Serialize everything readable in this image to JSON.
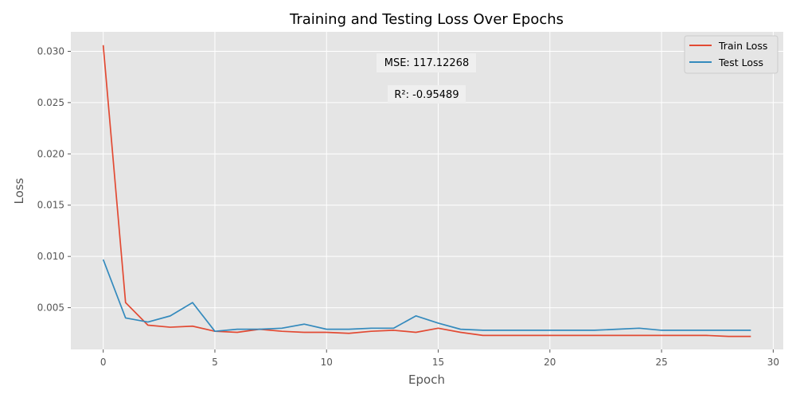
{
  "chart_data": {
    "type": "line",
    "title": "Training and Testing Loss Over Epochs",
    "xlabel": "Epoch",
    "ylabel": "Loss",
    "xlim": [
      -1.45,
      30.45
    ],
    "ylim": [
      0.00093,
      0.0319
    ],
    "xticks": [
      0,
      5,
      10,
      15,
      20,
      25,
      30
    ],
    "yticks": [
      0.005,
      0.01,
      0.015,
      0.02,
      0.025,
      0.03
    ],
    "ytick_labels": [
      "0.005",
      "0.010",
      "0.015",
      "0.020",
      "0.025",
      "0.030"
    ],
    "grid": true,
    "legend_position": "top-right",
    "annotations": [
      {
        "text": "MSE: 117.12268"
      },
      {
        "text": "R²: -0.95489"
      }
    ],
    "x": [
      0,
      1,
      2,
      3,
      4,
      5,
      6,
      7,
      8,
      9,
      10,
      11,
      12,
      13,
      14,
      15,
      16,
      17,
      18,
      19,
      20,
      21,
      22,
      23,
      24,
      25,
      26,
      27,
      28,
      29
    ],
    "series": [
      {
        "name": "Train Loss",
        "color": "#E24A33",
        "values": [
          0.0306,
          0.0055,
          0.0033,
          0.0031,
          0.0032,
          0.0027,
          0.0026,
          0.0029,
          0.0027,
          0.0026,
          0.0026,
          0.0025,
          0.0027,
          0.0028,
          0.0026,
          0.003,
          0.0026,
          0.0023,
          0.0023,
          0.0023,
          0.0023,
          0.0023,
          0.0023,
          0.0023,
          0.0023,
          0.0023,
          0.0023,
          0.0023,
          0.0022,
          0.0022
        ]
      },
      {
        "name": "Test Loss",
        "color": "#348ABD",
        "values": [
          0.0097,
          0.004,
          0.0036,
          0.0042,
          0.0055,
          0.0027,
          0.0029,
          0.0029,
          0.003,
          0.0034,
          0.0029,
          0.0029,
          0.003,
          0.003,
          0.0042,
          0.0035,
          0.0029,
          0.0028,
          0.0028,
          0.0028,
          0.0028,
          0.0028,
          0.0028,
          0.0029,
          0.003,
          0.0028,
          0.0028,
          0.0028,
          0.0028,
          0.0028
        ]
      }
    ]
  }
}
